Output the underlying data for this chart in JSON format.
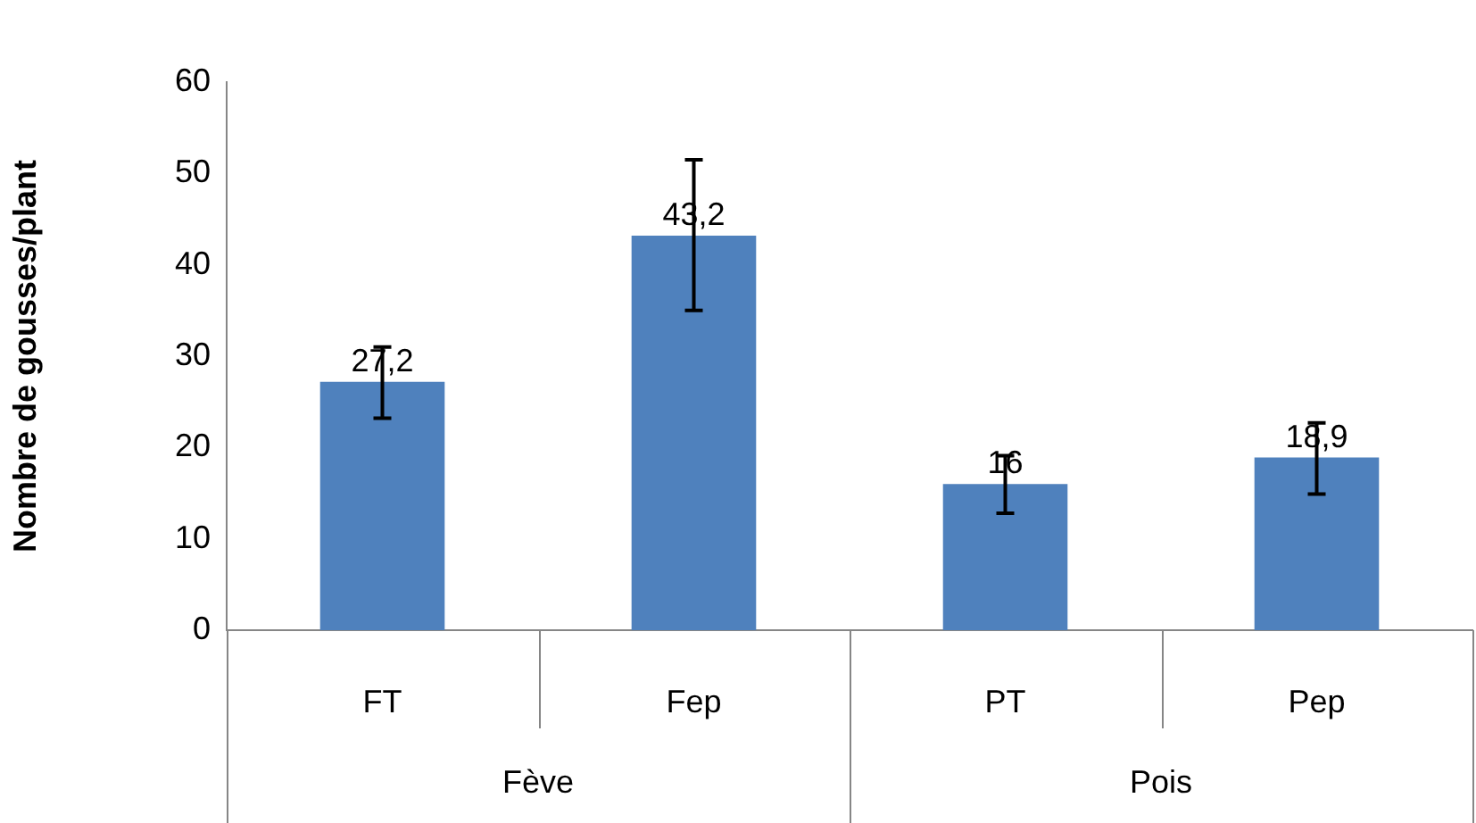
{
  "chart_data": {
    "type": "bar",
    "ylabel": "Nombre de gousses/plant",
    "categories": [
      "FT",
      "Fep",
      "PT",
      "Pep"
    ],
    "values": [
      27.2,
      43.2,
      16,
      18.9
    ],
    "value_labels": [
      "27,2",
      "43,2",
      "16",
      "18,9"
    ],
    "errors": [
      [
        23.2,
        31
      ],
      [
        35,
        51.5
      ],
      [
        12.8,
        19.1
      ],
      [
        14.9,
        22.7
      ]
    ],
    "color": "#4f81bd",
    "ylim": [
      0,
      60
    ],
    "yticks": [
      0,
      10,
      20,
      30,
      40,
      50,
      60
    ],
    "grid": false,
    "legend": false,
    "annotations": [
      "Fève",
      "Pois"
    ]
  }
}
